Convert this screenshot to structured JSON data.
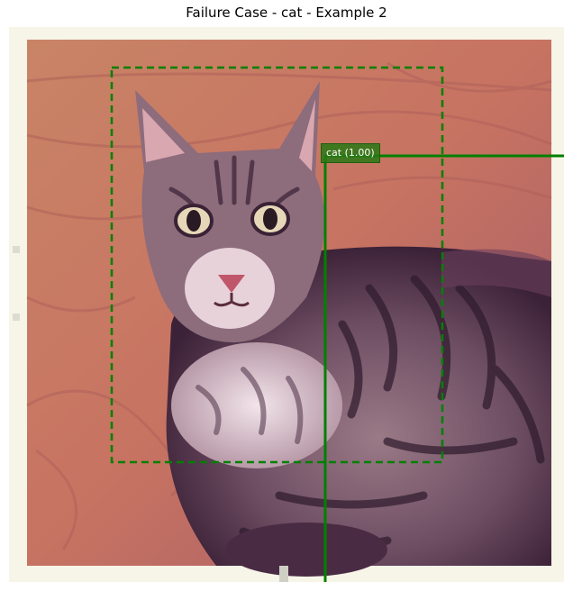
{
  "title": "Failure Case - cat - Example 2",
  "detection": {
    "label": "cat (1.00)",
    "box_color": "#008000"
  },
  "image": {
    "subject": "tabby cat lying on a wooden floor",
    "icon": "photo-icon"
  }
}
